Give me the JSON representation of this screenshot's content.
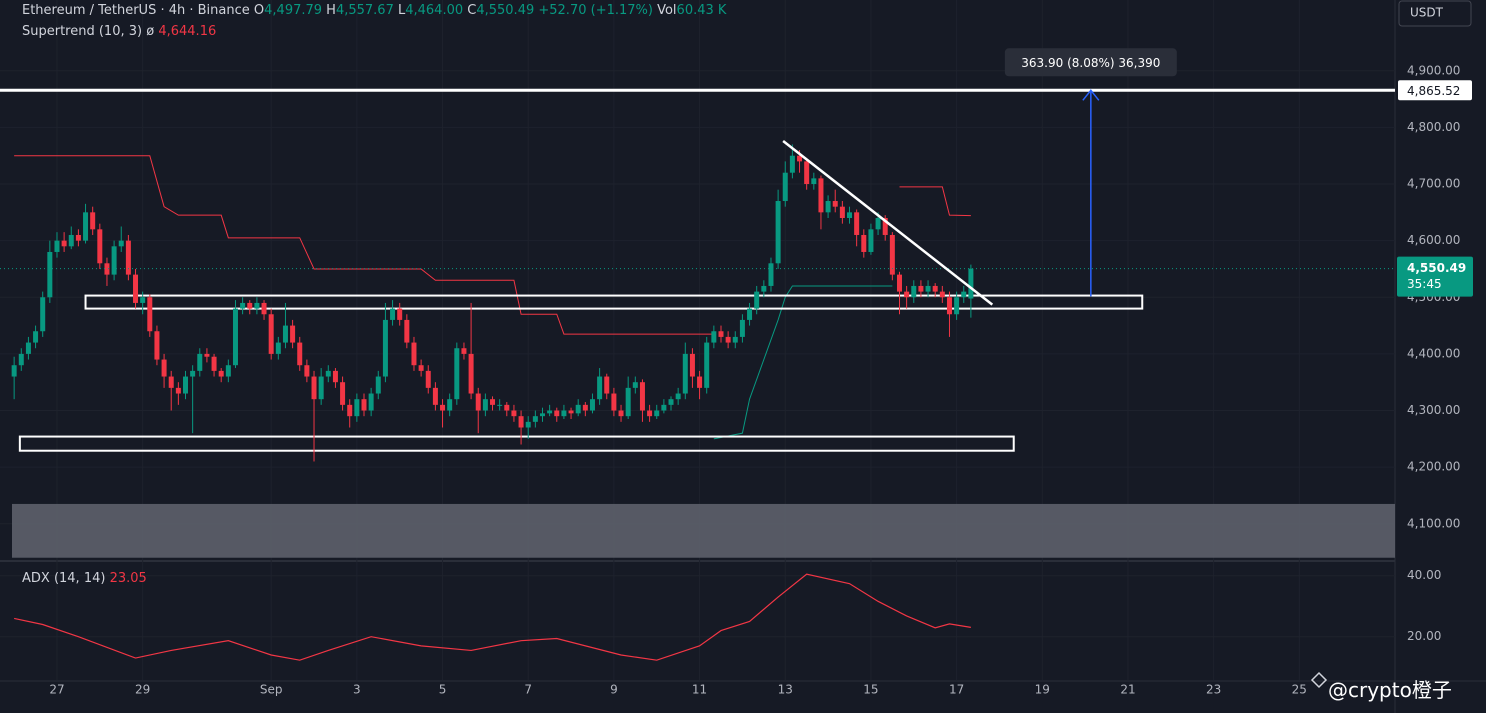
{
  "header": {
    "title": "Ethereum / TetherUS · 4h · Binance",
    "ohlc": [
      {
        "key": "O",
        "value": "4,497.79"
      },
      {
        "key": "H",
        "value": "4,557.67"
      },
      {
        "key": "L",
        "value": "4,464.00"
      },
      {
        "key": "C",
        "value": "4,550.49"
      }
    ],
    "change": "+52.70 (+1.17%)",
    "vol_key": "Vol",
    "vol_value": "60.43 K"
  },
  "indicator": {
    "name": "Supertrend (10, 3)",
    "icon": "ø",
    "value": "4,644.16"
  },
  "currency": "USDT",
  "watermark": "@crypto橙子",
  "chart_data": {
    "type": "candlestick",
    "up_color": "#089981",
    "down_color": "#f23645",
    "xlim": [
      -0.3,
      193.4
    ],
    "ylim": [
      4036,
      5025
    ],
    "yticks": [
      {
        "value": 4100,
        "label": "4,100.00"
      },
      {
        "value": 4200,
        "label": "4,200.00"
      },
      {
        "value": 4300,
        "label": "4,300.00"
      },
      {
        "value": 4400,
        "label": "4,400.00"
      },
      {
        "value": 4500,
        "label": "4,500.00"
      },
      {
        "value": 4600,
        "label": "4,600.00"
      },
      {
        "value": 4700,
        "label": "4,700.00"
      },
      {
        "value": 4800,
        "label": "4,800.00"
      },
      {
        "value": 4900,
        "label": "4,900.00"
      }
    ],
    "xticks": [
      {
        "value": 6,
        "label": "27"
      },
      {
        "value": 18,
        "label": "29"
      },
      {
        "value": 36,
        "label": "Sep"
      },
      {
        "value": 48,
        "label": "3"
      },
      {
        "value": 60,
        "label": "5"
      },
      {
        "value": 72,
        "label": "7"
      },
      {
        "value": 84,
        "label": "9"
      },
      {
        "value": 96,
        "label": "11"
      },
      {
        "value": 108,
        "label": "13"
      },
      {
        "value": 120,
        "label": "15"
      },
      {
        "value": 132,
        "label": "17"
      },
      {
        "value": 144,
        "label": "19"
      },
      {
        "value": 156,
        "label": "21"
      },
      {
        "value": 168,
        "label": "23"
      },
      {
        "value": 180,
        "label": "25"
      }
    ],
    "grid": true,
    "candles": [
      [
        4360,
        4395,
        4320,
        4380
      ],
      [
        4380,
        4410,
        4370,
        4400
      ],
      [
        4400,
        4430,
        4390,
        4420
      ],
      [
        4420,
        4450,
        4410,
        4440
      ],
      [
        4440,
        4510,
        4430,
        4500
      ],
      [
        4500,
        4600,
        4490,
        4580
      ],
      [
        4580,
        4615,
        4570,
        4600
      ],
      [
        4600,
        4615,
        4580,
        4590
      ],
      [
        4590,
        4625,
        4585,
        4610
      ],
      [
        4610,
        4620,
        4590,
        4600
      ],
      [
        4600,
        4665,
        4595,
        4650
      ],
      [
        4650,
        4660,
        4610,
        4620
      ],
      [
        4620,
        4630,
        4550,
        4560
      ],
      [
        4560,
        4570,
        4520,
        4540
      ],
      [
        4540,
        4600,
        4530,
        4590
      ],
      [
        4590,
        4625,
        4580,
        4600
      ],
      [
        4600,
        4610,
        4530,
        4540
      ],
      [
        4540,
        4550,
        4480,
        4490
      ],
      [
        4490,
        4510,
        4470,
        4500
      ],
      [
        4500,
        4505,
        4430,
        4440
      ],
      [
        4440,
        4450,
        4380,
        4390
      ],
      [
        4390,
        4400,
        4340,
        4360
      ],
      [
        4360,
        4370,
        4300,
        4340
      ],
      [
        4340,
        4350,
        4310,
        4330
      ],
      [
        4330,
        4370,
        4320,
        4360
      ],
      [
        4360,
        4380,
        4260,
        4370
      ],
      [
        4370,
        4410,
        4360,
        4400
      ],
      [
        4400,
        4410,
        4385,
        4395
      ],
      [
        4395,
        4400,
        4360,
        4370
      ],
      [
        4370,
        4375,
        4350,
        4360
      ],
      [
        4360,
        4390,
        4350,
        4380
      ],
      [
        4380,
        4495,
        4375,
        4480
      ],
      [
        4480,
        4500,
        4470,
        4490
      ],
      [
        4490,
        4495,
        4470,
        4480
      ],
      [
        4480,
        4500,
        4470,
        4490
      ],
      [
        4490,
        4495,
        4460,
        4470
      ],
      [
        4470,
        4480,
        4390,
        4400
      ],
      [
        4400,
        4430,
        4390,
        4420
      ],
      [
        4420,
        4490,
        4410,
        4450
      ],
      [
        4450,
        4460,
        4410,
        4420
      ],
      [
        4420,
        4430,
        4370,
        4380
      ],
      [
        4380,
        4390,
        4350,
        4360
      ],
      [
        4360,
        4370,
        4210,
        4320
      ],
      [
        4320,
        4375,
        4310,
        4360
      ],
      [
        4360,
        4380,
        4350,
        4370
      ],
      [
        4370,
        4375,
        4340,
        4350
      ],
      [
        4350,
        4360,
        4300,
        4310
      ],
      [
        4310,
        4320,
        4270,
        4290
      ],
      [
        4290,
        4330,
        4280,
        4320
      ],
      [
        4320,
        4330,
        4290,
        4300
      ],
      [
        4300,
        4340,
        4290,
        4330
      ],
      [
        4330,
        4370,
        4320,
        4360
      ],
      [
        4360,
        4490,
        4350,
        4460
      ],
      [
        4460,
        4495,
        4450,
        4480
      ],
      [
        4480,
        4490,
        4450,
        4460
      ],
      [
        4460,
        4470,
        4410,
        4420
      ],
      [
        4420,
        4430,
        4370,
        4380
      ],
      [
        4380,
        4390,
        4360,
        4370
      ],
      [
        4370,
        4380,
        4330,
        4340
      ],
      [
        4340,
        4350,
        4300,
        4310
      ],
      [
        4310,
        4320,
        4270,
        4300
      ],
      [
        4300,
        4330,
        4290,
        4320
      ],
      [
        4320,
        4420,
        4310,
        4410
      ],
      [
        4410,
        4420,
        4390,
        4400
      ],
      [
        4400,
        4490,
        4320,
        4330
      ],
      [
        4330,
        4340,
        4260,
        4300
      ],
      [
        4300,
        4330,
        4290,
        4320
      ],
      [
        4320,
        4325,
        4300,
        4310
      ],
      [
        4310,
        4320,
        4300,
        4310
      ],
      [
        4310,
        4315,
        4290,
        4300
      ],
      [
        4300,
        4310,
        4280,
        4290
      ],
      [
        4290,
        4300,
        4240,
        4270
      ],
      [
        4270,
        4290,
        4250,
        4280
      ],
      [
        4280,
        4300,
        4270,
        4290
      ],
      [
        4290,
        4305,
        4280,
        4295
      ],
      [
        4295,
        4310,
        4290,
        4300
      ],
      [
        4300,
        4305,
        4280,
        4290
      ],
      [
        4290,
        4310,
        4285,
        4300
      ],
      [
        4300,
        4305,
        4285,
        4295
      ],
      [
        4295,
        4320,
        4290,
        4310
      ],
      [
        4310,
        4315,
        4290,
        4300
      ],
      [
        4300,
        4330,
        4295,
        4320
      ],
      [
        4320,
        4375,
        4310,
        4360
      ],
      [
        4360,
        4365,
        4320,
        4330
      ],
      [
        4330,
        4340,
        4290,
        4300
      ],
      [
        4300,
        4310,
        4280,
        4290
      ],
      [
        4290,
        4360,
        4285,
        4340
      ],
      [
        4340,
        4360,
        4330,
        4350
      ],
      [
        4350,
        4355,
        4280,
        4300
      ],
      [
        4300,
        4310,
        4280,
        4290
      ],
      [
        4290,
        4310,
        4285,
        4300
      ],
      [
        4300,
        4320,
        4295,
        4310
      ],
      [
        4310,
        4325,
        4300,
        4320
      ],
      [
        4320,
        4340,
        4310,
        4330
      ],
      [
        4330,
        4420,
        4320,
        4400
      ],
      [
        4400,
        4410,
        4340,
        4360
      ],
      [
        4360,
        4370,
        4320,
        4340
      ],
      [
        4340,
        4430,
        4330,
        4420
      ],
      [
        4420,
        4450,
        4410,
        4440
      ],
      [
        4440,
        4450,
        4420,
        4430
      ],
      [
        4430,
        4440,
        4410,
        4420
      ],
      [
        4420,
        4440,
        4410,
        4430
      ],
      [
        4430,
        4470,
        4420,
        4460
      ],
      [
        4460,
        4490,
        4450,
        4480
      ],
      [
        4480,
        4520,
        4470,
        4510
      ],
      [
        4510,
        4530,
        4500,
        4520
      ],
      [
        4520,
        4570,
        4510,
        4560
      ],
      [
        4560,
        4690,
        4550,
        4670
      ],
      [
        4670,
        4740,
        4660,
        4720
      ],
      [
        4720,
        4770,
        4710,
        4750
      ],
      [
        4750,
        4760,
        4720,
        4740
      ],
      [
        4740,
        4745,
        4690,
        4700
      ],
      [
        4700,
        4720,
        4690,
        4710
      ],
      [
        4710,
        4715,
        4620,
        4650
      ],
      [
        4650,
        4680,
        4640,
        4670
      ],
      [
        4670,
        4690,
        4650,
        4660
      ],
      [
        4660,
        4670,
        4630,
        4640
      ],
      [
        4640,
        4660,
        4630,
        4650
      ],
      [
        4650,
        4655,
        4590,
        4610
      ],
      [
        4610,
        4620,
        4570,
        4580
      ],
      [
        4580,
        4630,
        4575,
        4620
      ],
      [
        4620,
        4650,
        4610,
        4640
      ],
      [
        4640,
        4645,
        4600,
        4610
      ],
      [
        4610,
        4615,
        4530,
        4540
      ],
      [
        4540,
        4545,
        4470,
        4510
      ],
      [
        4510,
        4520,
        4480,
        4500
      ],
      [
        4500,
        4530,
        4490,
        4520
      ],
      [
        4520,
        4530,
        4500,
        4510
      ],
      [
        4510,
        4530,
        4500,
        4520
      ],
      [
        4520,
        4525,
        4500,
        4510
      ],
      [
        4510,
        4520,
        4490,
        4500
      ],
      [
        4500,
        4510,
        4430,
        4470
      ],
      [
        4470,
        4510,
        4460,
        4500
      ],
      [
        4500,
        4520,
        4490,
        4510
      ],
      [
        4497.79,
        4557.67,
        4464.0,
        4550.49
      ]
    ],
    "supertrend_down": {
      "color": "#f23645",
      "x": [
        0,
        19,
        21,
        23,
        29,
        30,
        40,
        42,
        57,
        59,
        70,
        71,
        76,
        77,
        98,
        null,
        124,
        130,
        131,
        134
      ],
      "values": [
        4750,
        4750,
        4660,
        4645,
        4645,
        4605,
        4605,
        4550,
        4550,
        4530,
        4530,
        4470,
        4470,
        4435,
        4435,
        null,
        4695,
        4695,
        4645,
        4644.16
      ]
    },
    "supertrend_up": {
      "color": "#089981",
      "x": [
        98,
        102,
        103,
        105,
        107,
        108,
        109,
        123
      ],
      "values": [
        4250,
        4260,
        4320,
        4390,
        4460,
        4500,
        4520,
        4520
      ]
    },
    "shaded_band": {
      "color": "#5d606b",
      "y": [
        4040,
        4135
      ]
    },
    "zones": [
      {
        "x": [
          10,
          158
        ],
        "y": [
          4480,
          4503
        ]
      },
      {
        "x": [
          0.8,
          140
        ],
        "y": [
          4229,
          4254
        ]
      }
    ],
    "trendline": {
      "x": [
        107.7,
        137
      ],
      "y": [
        4776,
        4487
      ]
    },
    "level": {
      "value": 4865.52,
      "label": "4,865.52"
    },
    "measure": {
      "x": 150.8,
      "y": [
        4501.62,
        4865.52
      ],
      "label": "363.90 (8.08%) 36,390",
      "color": "#2962ff"
    },
    "last_price": {
      "value": 4550.49,
      "label": "4,550.49",
      "countdown": "35:45"
    },
    "adx": {
      "name": "ADX (14, 14)",
      "color": "#f23645",
      "ylim": [
        5.8,
        44.5
      ],
      "yticks": [
        {
          "value": 20,
          "label": "20.00"
        },
        {
          "value": 40,
          "label": "40.00"
        }
      ],
      "x": [
        0,
        4,
        9,
        17,
        22,
        30,
        36,
        40,
        44,
        50,
        57,
        64,
        71,
        76,
        85,
        90,
        96,
        99,
        103,
        107,
        111,
        117,
        121,
        125,
        129,
        131,
        134
      ],
      "values": [
        26,
        24,
        20,
        13,
        15.5,
        18.7,
        14,
        12.3,
        15.5,
        20,
        17,
        15.5,
        18.7,
        19.4,
        14,
        12.3,
        17,
        22,
        25,
        33,
        40.5,
        37.4,
        31.6,
        26.8,
        22.9,
        24.2,
        23.05
      ]
    }
  }
}
